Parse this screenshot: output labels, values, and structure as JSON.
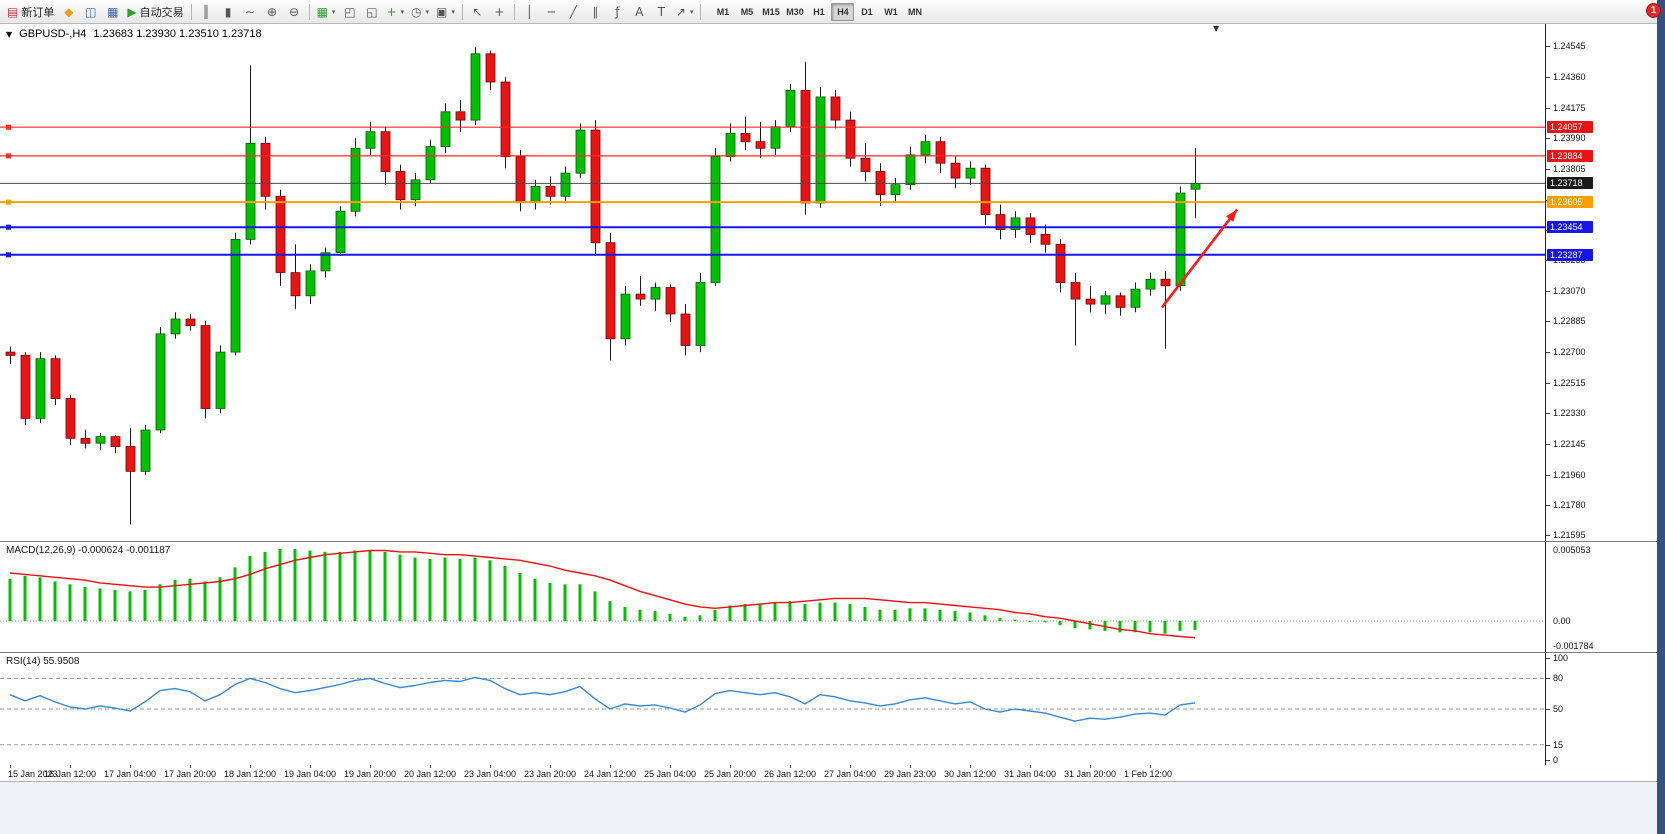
{
  "window": {
    "notification_badge": "1"
  },
  "toolbar": {
    "timeframes": [
      "M1",
      "M5",
      "M15",
      "M30",
      "H1",
      "H4",
      "D1",
      "W1",
      "MN"
    ],
    "active_timeframe": "H4",
    "groups": [
      {
        "buttons": [
          {
            "name": "new-order-button",
            "glyph": "▤",
            "color": "#c03a3a",
            "label": "新订单"
          },
          {
            "name": "favorites-button",
            "glyph": "◆",
            "color": "#dfa21f"
          },
          {
            "name": "market-watch-button",
            "glyph": "◫",
            "color": "#3f68ad"
          },
          {
            "name": "data-window-button",
            "glyph": "▦",
            "color": "#3f68ad"
          },
          {
            "name": "auto-trading-button",
            "glyph": "▶",
            "color": "#2f9e2f",
            "label": "自动交易"
          }
        ]
      },
      {
        "buttons": [
          {
            "name": "bar-chart-type-button",
            "glyph": "║"
          },
          {
            "name": "candlestick-type-button",
            "glyph": "▮"
          },
          {
            "name": "line-chart-type-button",
            "glyph": "∼"
          },
          {
            "name": "zoom-in-button",
            "glyph": "⊕"
          },
          {
            "name": "zoom-out-button",
            "glyph": "⊖"
          }
        ]
      },
      {
        "buttons": [
          {
            "name": "indicators-button",
            "glyph": "▦",
            "color": "#2f9e2f",
            "dropdown": true
          },
          {
            "name": "tile-windows-button",
            "glyph": "◰"
          },
          {
            "name": "cascade-windows-button",
            "glyph": "◱"
          },
          {
            "name": "add-object-button",
            "glyph": "+",
            "color": "#2f9e2f",
            "dropdown": true
          },
          {
            "name": "periods-button",
            "glyph": "◷",
            "dropdown": true
          },
          {
            "name": "templates-button",
            "glyph": "▣",
            "dropdown": true
          }
        ]
      },
      {
        "buttons": [
          {
            "name": "cursor-button",
            "glyph": "↖"
          },
          {
            "name": "crosshair-button",
            "glyph": "+"
          }
        ]
      },
      {
        "buttons": [
          {
            "name": "vertical-line-button",
            "glyph": "│"
          },
          {
            "name": "horizontal-line-button",
            "glyph": "─"
          },
          {
            "name": "trendline-button",
            "glyph": "╱"
          },
          {
            "name": "channel-button",
            "glyph": "∥"
          },
          {
            "name": "fibonacci-button",
            "glyph": "ƒ"
          },
          {
            "name": "text-button",
            "glyph": "A"
          },
          {
            "name": "label-button",
            "glyph": "T"
          },
          {
            "name": "arrows-button",
            "glyph": "↗",
            "dropdown": true
          }
        ]
      }
    ]
  },
  "chart": {
    "title": "GBPUSD-,H4",
    "ohlc_text": "1.23683 1.23930 1.23510 1.23718",
    "dropdown_icon": "▼",
    "shift_marker_icon": "▼"
  },
  "chart_data": {
    "type": "candlestick",
    "symbol": "GBPUSD-",
    "timeframe": "H4",
    "current_bar": {
      "open": 1.23683,
      "high": 1.2393,
      "low": 1.2351,
      "close": 1.23718
    },
    "colors": {
      "up": "#00c000",
      "up_border": "#005c00",
      "down": "#e81414",
      "down_border": "#7c0000",
      "wick": "#1a1a1a",
      "macd_signal": "#ee1010",
      "rsi": "#3a87d6"
    },
    "y_axis": {
      "range": {
        "top": 1.2468,
        "bottom": 1.2156
      },
      "ticks": [
        "1.24545",
        "1.24360",
        "1.24175",
        "1.23990",
        "1.23805",
        "1.23620",
        "1.23435",
        "1.23255",
        "1.23070",
        "1.22885",
        "1.22700",
        "1.22515",
        "1.22330",
        "1.22145",
        "1.21960",
        "1.21780",
        "1.21595"
      ]
    },
    "x_label_step": 4,
    "x_labels": [
      "15 Jan 2023",
      "16 Jan 12:00",
      "17 Jan 04:00",
      "17 Jan 20:00",
      "18 Jan 12:00",
      "19 Jan 04:00",
      "19 Jan 20:00",
      "20 Jan 12:00",
      "23 Jan 04:00",
      "23 Jan 20:00",
      "24 Jan 12:00",
      "25 Jan 04:00",
      "25 Jan 20:00",
      "26 Jan 12:00",
      "27 Jan 04:00",
      "29 Jan 23:00",
      "30 Jan 12:00",
      "31 Jan 04:00",
      "31 Jan 20:00",
      "1 Feb 12:00"
    ],
    "candles": [
      [
        1.227,
        1.2273,
        1.2263,
        1.2268
      ],
      [
        1.2268,
        1.227,
        1.2226,
        1.223
      ],
      [
        1.223,
        1.227,
        1.2227,
        1.2266
      ],
      [
        1.2266,
        1.2268,
        1.2238,
        1.2242
      ],
      [
        1.2242,
        1.2244,
        1.2214,
        1.2218
      ],
      [
        1.2218,
        1.2223,
        1.2212,
        1.2215
      ],
      [
        1.2215,
        1.2221,
        1.2211,
        1.2219
      ],
      [
        1.2219,
        1.222,
        1.2209,
        1.2213
      ],
      [
        1.2213,
        1.2224,
        1.2166,
        1.2198
      ],
      [
        1.2198,
        1.2226,
        1.2196,
        1.2223
      ],
      [
        1.2223,
        1.2285,
        1.2221,
        1.2281
      ],
      [
        1.2281,
        1.2294,
        1.2278,
        1.229
      ],
      [
        1.229,
        1.2293,
        1.2283,
        1.2286
      ],
      [
        1.2286,
        1.2289,
        1.223,
        1.2236
      ],
      [
        1.2236,
        1.2274,
        1.2233,
        1.227
      ],
      [
        1.227,
        1.2342,
        1.2268,
        1.2338
      ],
      [
        1.2338,
        1.2443,
        1.2335,
        1.2396
      ],
      [
        1.2396,
        1.24,
        1.2356,
        1.2364
      ],
      [
        1.2364,
        1.2368,
        1.231,
        1.2318
      ],
      [
        1.2318,
        1.2335,
        1.2296,
        1.2304
      ],
      [
        1.2304,
        1.2323,
        1.2299,
        1.2319
      ],
      [
        1.2319,
        1.2333,
        1.2315,
        1.233
      ],
      [
        1.233,
        1.2358,
        1.2328,
        1.2355
      ],
      [
        1.2355,
        1.2399,
        1.2352,
        1.2393
      ],
      [
        1.2393,
        1.2409,
        1.2389,
        1.2403
      ],
      [
        1.2403,
        1.2406,
        1.2371,
        1.2379
      ],
      [
        1.2379,
        1.2383,
        1.2356,
        1.2362
      ],
      [
        1.2362,
        1.2378,
        1.2358,
        1.2374
      ],
      [
        1.2374,
        1.2398,
        1.2372,
        1.2394
      ],
      [
        1.2394,
        1.242,
        1.239,
        1.2415
      ],
      [
        1.2415,
        1.2422,
        1.2403,
        1.241
      ],
      [
        1.241,
        1.2454,
        1.2407,
        1.245
      ],
      [
        1.245,
        1.2452,
        1.2428,
        1.2433
      ],
      [
        1.2433,
        1.2436,
        1.2381,
        1.2388
      ],
      [
        1.2388,
        1.2392,
        1.2355,
        1.2361
      ],
      [
        1.2361,
        1.2374,
        1.2356,
        1.237
      ],
      [
        1.237,
        1.2376,
        1.2359,
        1.2364
      ],
      [
        1.2364,
        1.2382,
        1.236,
        1.2378
      ],
      [
        1.2378,
        1.2408,
        1.2375,
        1.2404
      ],
      [
        1.2404,
        1.241,
        1.2328,
        1.2336
      ],
      [
        1.2336,
        1.2342,
        1.2265,
        1.2278
      ],
      [
        1.2278,
        1.231,
        1.2274,
        1.2305
      ],
      [
        1.2305,
        1.2316,
        1.2298,
        1.2302
      ],
      [
        1.2302,
        1.2312,
        1.2295,
        1.2309
      ],
      [
        1.2309,
        1.2311,
        1.2288,
        1.2293
      ],
      [
        1.2293,
        1.2299,
        1.2268,
        1.2274
      ],
      [
        1.2274,
        1.2318,
        1.227,
        1.2312
      ],
      [
        1.2312,
        1.2393,
        1.231,
        1.2388
      ],
      [
        1.2388,
        1.2408,
        1.2385,
        1.2402
      ],
      [
        1.2402,
        1.2412,
        1.2392,
        1.2397
      ],
      [
        1.2397,
        1.2409,
        1.2387,
        1.2393
      ],
      [
        1.2393,
        1.241,
        1.2389,
        1.2406
      ],
      [
        1.2406,
        1.2432,
        1.2403,
        1.2428
      ],
      [
        1.2428,
        1.2445,
        1.2353,
        1.236
      ],
      [
        1.236,
        1.243,
        1.2357,
        1.2424
      ],
      [
        1.2424,
        1.2428,
        1.2405,
        1.241
      ],
      [
        1.241,
        1.2415,
        1.2382,
        1.2387
      ],
      [
        1.2387,
        1.2396,
        1.2373,
        1.2379
      ],
      [
        1.2379,
        1.2384,
        1.2358,
        1.2365
      ],
      [
        1.2365,
        1.2375,
        1.236,
        1.2371
      ],
      [
        1.2371,
        1.2394,
        1.2368,
        1.2389
      ],
      [
        1.2389,
        1.2401,
        1.2384,
        1.2397
      ],
      [
        1.2397,
        1.24,
        1.2378,
        1.2384
      ],
      [
        1.2384,
        1.2388,
        1.2369,
        1.2375
      ],
      [
        1.2375,
        1.2385,
        1.2371,
        1.2381
      ],
      [
        1.2381,
        1.2383,
        1.2347,
        1.2353
      ],
      [
        1.2353,
        1.2359,
        1.2338,
        1.2344
      ],
      [
        1.2344,
        1.2355,
        1.2339,
        1.2351
      ],
      [
        1.2351,
        1.2354,
        1.2336,
        1.2341
      ],
      [
        1.2341,
        1.2347,
        1.233,
        1.2335
      ],
      [
        1.2335,
        1.2338,
        1.2306,
        1.2312
      ],
      [
        1.2312,
        1.2318,
        1.2274,
        1.2302
      ],
      [
        1.2302,
        1.231,
        1.2294,
        1.2299
      ],
      [
        1.2299,
        1.2307,
        1.2293,
        1.2304
      ],
      [
        1.2304,
        1.2306,
        1.2292,
        1.2297
      ],
      [
        1.2297,
        1.2312,
        1.2294,
        1.2308
      ],
      [
        1.2308,
        1.2318,
        1.2304,
        1.2314
      ],
      [
        1.2314,
        1.2319,
        1.2272,
        1.231
      ],
      [
        1.231,
        1.237,
        1.2307,
        1.2366
      ],
      [
        1.23683,
        1.2393,
        1.2351,
        1.23718
      ]
    ],
    "h_lines": [
      {
        "price": 1.24057,
        "label": "1.24057",
        "color": "#ff2a2a",
        "width": 1.2,
        "box": "#e81414"
      },
      {
        "price": 1.23884,
        "label": "1.23884",
        "color": "#ff2a2a",
        "width": 1.2,
        "box": "#e81414"
      },
      {
        "price": 1.23718,
        "label": "1.23718",
        "color": "#4a4a4a",
        "width": 1,
        "box": "#1a1a1a",
        "bid": true
      },
      {
        "price": 1.23605,
        "label": "1.23605",
        "color": "#ff9e00",
        "width": 2,
        "box": "#ff9e00"
      },
      {
        "price": 1.23454,
        "label": "1.23454",
        "color": "#1616e8",
        "width": 2,
        "box": "#1616e8"
      },
      {
        "price": 1.23287,
        "label": "1.23287",
        "color": "#1616e8",
        "width": 2,
        "box": "#1616e8"
      }
    ],
    "arrow": {
      "i1": 76.8,
      "p1": 1.2297,
      "i2": 81.8,
      "p2": 1.2356,
      "color": "#ff1a1a"
    },
    "macd": {
      "display": "MACD(12,26,9) -0.000624 -0.001187",
      "params": "12,26,9",
      "main_value": -0.000624,
      "signal_value": -0.001187,
      "scale": {
        "top": 0.0056,
        "bottom": -0.0022,
        "ticks": [
          {
            "v": 0.005053,
            "t": "0.005053"
          },
          {
            "v": 0,
            "t": "0.00"
          },
          {
            "v": -0.001784,
            "t": "-0.001784"
          }
        ]
      },
      "histogram": [
        0.003,
        0.0032,
        0.0031,
        0.0028,
        0.0026,
        0.0024,
        0.0023,
        0.0022,
        0.0021,
        0.0022,
        0.0026,
        0.0029,
        0.003,
        0.0028,
        0.0031,
        0.0038,
        0.0046,
        0.0049,
        0.0051,
        0.0051,
        0.005,
        0.0049,
        0.0049,
        0.005,
        0.005,
        0.0049,
        0.0047,
        0.0045,
        0.0044,
        0.0045,
        0.0044,
        0.0045,
        0.0043,
        0.0039,
        0.0034,
        0.003,
        0.0027,
        0.0026,
        0.0026,
        0.0021,
        0.0014,
        0.001,
        0.0008,
        0.0007,
        0.0005,
        0.0003,
        0.0004,
        0.0008,
        0.0011,
        0.0012,
        0.0012,
        0.0013,
        0.0014,
        0.0012,
        0.0013,
        0.0013,
        0.0012,
        0.001,
        0.0008,
        0.0008,
        0.0009,
        0.0009,
        0.0008,
        0.0007,
        0.0006,
        0.0004,
        0.0002,
        0.0001,
        0.0,
        -0.0001,
        -0.0003,
        -0.0005,
        -0.0006,
        -0.0007,
        -0.0008,
        -0.0008,
        -0.0008,
        -0.0009,
        -0.0007,
        -0.000624
      ],
      "signal": [
        0.0034,
        0.0033,
        0.0032,
        0.0031,
        0.003,
        0.0029,
        0.0027,
        0.0026,
        0.0025,
        0.0024,
        0.0024,
        0.0025,
        0.0026,
        0.0027,
        0.0028,
        0.003,
        0.0033,
        0.0037,
        0.004,
        0.0043,
        0.0045,
        0.0047,
        0.0048,
        0.0049,
        0.005,
        0.005,
        0.0049,
        0.0049,
        0.0048,
        0.0047,
        0.0047,
        0.0046,
        0.0045,
        0.0044,
        0.0043,
        0.0041,
        0.0039,
        0.0036,
        0.0034,
        0.0032,
        0.0029,
        0.0025,
        0.0021,
        0.0018,
        0.0015,
        0.0012,
        0.001,
        0.0009,
        0.001,
        0.0011,
        0.0012,
        0.0013,
        0.0013,
        0.0014,
        0.0015,
        0.0016,
        0.0016,
        0.0016,
        0.0015,
        0.0014,
        0.0013,
        0.0013,
        0.0012,
        0.0011,
        0.001,
        0.0009,
        0.0008,
        0.0006,
        0.0005,
        0.0003,
        0.0002,
        0.0,
        -0.0002,
        -0.0004,
        -0.0006,
        -0.0007,
        -0.0009,
        -0.001,
        -0.0011,
        -0.001187
      ]
    },
    "rsi": {
      "display": "RSI(14) 55.9508",
      "period": 14,
      "value": 55.9508,
      "levels": [
        80,
        50,
        15
      ],
      "scale_ticks": [
        "100",
        "80",
        "50",
        "15",
        "0"
      ],
      "range": [
        0,
        100
      ],
      "values": [
        64,
        58,
        63,
        57,
        52,
        50,
        53,
        51,
        48,
        57,
        68,
        70,
        67,
        58,
        64,
        74,
        80,
        76,
        70,
        66,
        68,
        71,
        74,
        78,
        80,
        75,
        71,
        73,
        76,
        78,
        77,
        81,
        78,
        70,
        64,
        66,
        64,
        67,
        72,
        60,
        50,
        55,
        53,
        54,
        51,
        47,
        54,
        65,
        68,
        66,
        64,
        66,
        62,
        55,
        64,
        62,
        58,
        56,
        53,
        55,
        59,
        61,
        58,
        55,
        57,
        50,
        47,
        50,
        48,
        46,
        42,
        38,
        41,
        40,
        42,
        45,
        46,
        44,
        54,
        55.95
      ]
    }
  }
}
